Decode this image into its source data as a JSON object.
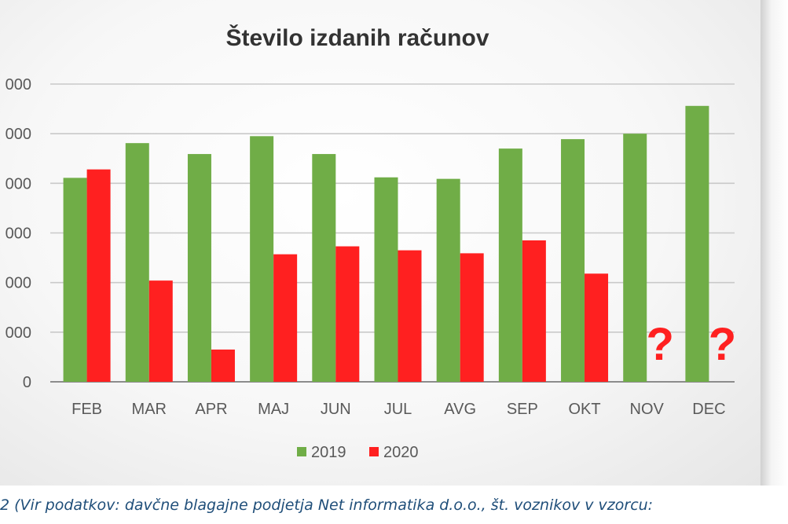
{
  "chart_data": {
    "type": "bar",
    "title": "Število izdanih računov",
    "categories": [
      "FEB",
      "MAR",
      "APR",
      "MAJ",
      "JUN",
      "JUL",
      "AVG",
      "SEP",
      "OKT",
      "NOV",
      "DEC"
    ],
    "series": [
      {
        "name": "2019",
        "color": "#70ad47",
        "values": [
          4110,
          4810,
          4590,
          4950,
          4590,
          4120,
          4090,
          4700,
          4890,
          5000,
          5560
        ]
      },
      {
        "name": "2020",
        "color": "#ff2020",
        "values": [
          4280,
          2040,
          650,
          2570,
          2730,
          2650,
          2590,
          2850,
          2180,
          null,
          null
        ]
      }
    ],
    "ylim": [
      0,
      6000
    ],
    "yticks": [
      0,
      1000,
      2000,
      3000,
      4000,
      5000,
      6000
    ],
    "ytick_labels": [
      "0",
      "000",
      "000",
      "000",
      "000",
      "000",
      "000"
    ],
    "grid": true,
    "legend_position": "bottom",
    "annotations": [
      {
        "category": "NOV",
        "text": "?"
      },
      {
        "category": "DEC",
        "text": "?"
      }
    ]
  },
  "caption": "2 (Vir podatkov: davčne blagajne podjetja Net informatika d.o.o., št. voznikov v vzorcu:"
}
